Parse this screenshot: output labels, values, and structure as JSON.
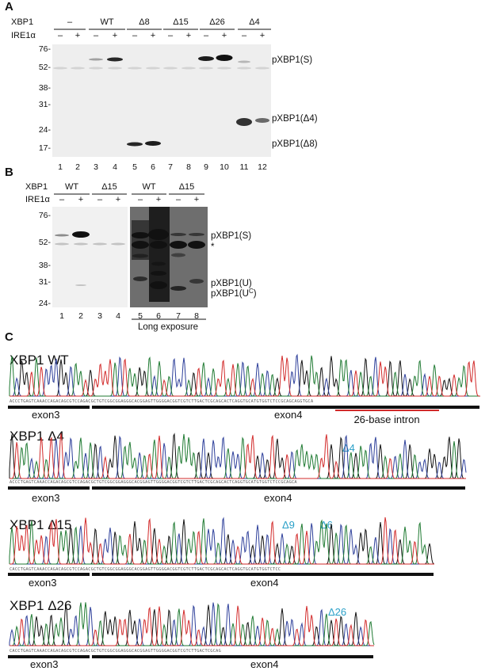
{
  "panelA": {
    "letter": "A",
    "row_label_xbp1": "XBP1",
    "row_label_ire1a": "IRE1α",
    "groups": [
      "–",
      "WT",
      "Δ8",
      "Δ15",
      "Δ26",
      "Δ4"
    ],
    "ire1a_marks": [
      "–",
      "+",
      "–",
      "+",
      "–",
      "+",
      "–",
      "+",
      "–",
      "+",
      "–",
      "+"
    ],
    "mw_markers": [
      "76-",
      "52-",
      "38-",
      "31-",
      "24-",
      "17-"
    ],
    "lanes": [
      "1",
      "2",
      "3",
      "4",
      "5",
      "6",
      "7",
      "8",
      "9",
      "10",
      "11",
      "12"
    ],
    "band_labels": [
      "pXBP1(S)",
      "pXBP1(Δ4)",
      "pXBP1(Δ8)"
    ]
  },
  "panelB": {
    "letter": "B",
    "row_label_xbp1": "XBP1",
    "row_label_ire1a": "IRE1α",
    "groups": [
      "WT",
      "Δ15",
      "WT",
      "Δ15"
    ],
    "ire1a_marks": [
      "–",
      "+",
      "–",
      "+",
      "–",
      "+",
      "–",
      "+"
    ],
    "mw_markers": [
      "76-",
      "52-",
      "38-",
      "31-",
      "24-"
    ],
    "lanes": [
      "1",
      "2",
      "3",
      "4",
      "5",
      "6",
      "7",
      "8"
    ],
    "band_labels": [
      "pXBP1(S)",
      "*",
      "pXBP1(U)",
      "pXBP1(U"
    ],
    "band_label_sup": "C",
    "band_label_close": ")",
    "exposure_label": "Long exposure"
  },
  "panelC": {
    "letter": "C",
    "traces": [
      {
        "title": "XBP1 WT",
        "exon3": "exon3",
        "exon4": "exon4",
        "intron": "26-base intron",
        "marks": []
      },
      {
        "title": "XBP1 Δ4",
        "exon3": "exon3",
        "exon4": "exon4",
        "marks": [
          "Δ4"
        ]
      },
      {
        "title": "XBP1 Δ15",
        "exon3": "exon3",
        "exon4": "exon4",
        "marks": [
          "Δ9",
          "Δ6"
        ]
      },
      {
        "title": "XBP1 Δ26",
        "exon3": "exon3",
        "exon4": "exon4",
        "marks": [
          "Δ26"
        ]
      }
    ]
  },
  "colors": {
    "trace_black": "#111111",
    "trace_blue": "#2d3f9a",
    "trace_green": "#1f7a32",
    "trace_red": "#d22a2a",
    "annotation_cyan": "#2aa0c8",
    "intron_bar": "#d22a2a"
  }
}
